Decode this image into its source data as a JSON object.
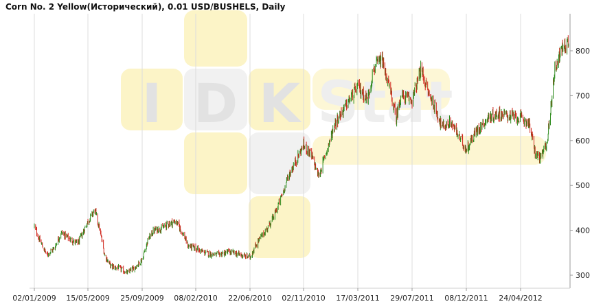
{
  "chart_data": {
    "type": "candlestick",
    "title": "Corn  No. 2 Yellow(Исторический), 0.01 USD/BUSHELS, Daily",
    "xlabel": "",
    "ylabel": "",
    "x_tick_labels": [
      "02/01/2009",
      "15/05/2009",
      "25/09/2009",
      "08/02/2010",
      "22/06/2010",
      "02/11/2010",
      "17/03/2011",
      "29/07/2011",
      "08/12/2011",
      "24/04/2012"
    ],
    "y_ticks": [
      300,
      400,
      500,
      600,
      700,
      800
    ],
    "ylim": [
      280,
      845
    ],
    "grid": "vertical",
    "watermark": {
      "letters": [
        "I",
        "D",
        "K"
      ],
      "word": "Stat"
    },
    "colors": {
      "up": "#2e8b1e",
      "down": "#d0271d",
      "grid": "#dcdcdc",
      "axis": "#9a9a9a",
      "watermark_yellow": "#fbf0b4",
      "watermark_gray": "#ececec"
    },
    "series": [
      {
        "x": [
          "02/01/2009",
          "15/01/2009",
          "02/02/2009",
          "20/02/2009",
          "10/03/2009",
          "01/04/2009",
          "20/04/2009",
          "15/05/2009",
          "01/06/2009",
          "12/06/2009",
          "25/06/2009",
          "10/07/2009",
          "01/08/2009",
          "20/08/2009",
          "10/09/2009",
          "25/09/2009",
          "10/10/2009",
          "25/10/2009",
          "15/11/2009",
          "01/12/2009",
          "20/12/2009",
          "08/01/2010",
          "20/01/2010",
          "08/02/2010",
          "01/03/2010",
          "01/04/2010",
          "01/05/2010",
          "22/06/2010",
          "30/06/2010",
          "15/07/2010",
          "01/08/2010",
          "20/08/2010",
          "10/09/2010",
          "25/09/2010",
          "02/11/2010",
          "20/11/2010",
          "10/12/2010",
          "01/01/2011",
          "20/01/2011",
          "10/02/2011",
          "17/03/2011",
          "10/04/2011",
          "25/04/2011",
          "15/05/2011",
          "05/06/2011",
          "20/06/2011",
          "01/07/2011",
          "29/07/2011",
          "20/08/2011",
          "05/09/2011",
          "20/09/2011",
          "10/10/2011",
          "01/11/2011",
          "08/12/2011",
          "01/01/2012",
          "01/02/2012",
          "01/03/2012",
          "24/04/2012",
          "15/05/2012",
          "01/06/2012",
          "15/06/2012",
          "01/07/2012",
          "20/07/2012",
          "10/08/2012",
          "30/08/2012"
        ],
        "close": [
          410,
          378,
          345,
          360,
          395,
          380,
          370,
          420,
          445,
          405,
          345,
          320,
          315,
          305,
          320,
          335,
          380,
          400,
          405,
          415,
          420,
          390,
          365,
          360,
          350,
          345,
          352,
          340,
          355,
          380,
          400,
          430,
          480,
          520,
          590,
          570,
          520,
          585,
          640,
          670,
          720,
          690,
          760,
          780,
          710,
          650,
          700,
          690,
          760,
          710,
          680,
          630,
          640,
          580,
          620,
          650,
          660,
          650,
          640,
          570,
          560,
          600,
          760,
          810,
          820
        ]
      }
    ]
  }
}
